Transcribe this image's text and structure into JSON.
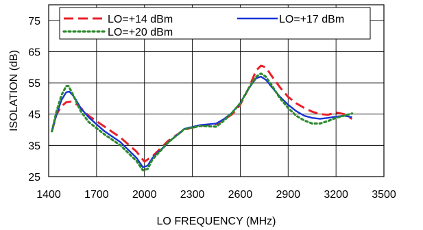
{
  "chart_data": {
    "type": "line",
    "title": "",
    "xlabel": "LO FREQUENCY (MHz)",
    "ylabel": "ISOLATION (dB)",
    "xlim": [
      1400,
      3500
    ],
    "ylim": [
      25,
      80
    ],
    "xticks": [
      1400,
      1700,
      2000,
      2300,
      2600,
      2900,
      3200,
      3500
    ],
    "yticks": [
      25,
      35,
      45,
      55,
      65,
      75
    ],
    "grid": true,
    "legend_position": "top",
    "series": [
      {
        "name": "LO=+14 dBm",
        "color": "#e8202a",
        "dash": "dashed",
        "x": [
          1420,
          1450,
          1480,
          1510,
          1540,
          1580,
          1650,
          1750,
          1850,
          1950,
          2000,
          2050,
          2150,
          2250,
          2350,
          2450,
          2500,
          2550,
          2600,
          2650,
          2700,
          2730,
          2760,
          2800,
          2850,
          2900,
          2950,
          3000,
          3050,
          3100,
          3150,
          3200,
          3250,
          3300
        ],
        "y": [
          39.5,
          45,
          47.5,
          48.8,
          49,
          48,
          44.5,
          41,
          37.5,
          33,
          29.8,
          31.5,
          36.5,
          40,
          41.3,
          41.8,
          43.3,
          45,
          48,
          53,
          59,
          60.5,
          60,
          57,
          53.5,
          50.5,
          48.5,
          47,
          45.8,
          45,
          44.8,
          45.5,
          45,
          43.5
        ]
      },
      {
        "name": "LO=+17 dBm",
        "color": "#1733d6",
        "dash": "solid",
        "x": [
          1420,
          1450,
          1480,
          1510,
          1530,
          1560,
          1600,
          1650,
          1750,
          1850,
          1950,
          1990,
          2020,
          2050,
          2150,
          2250,
          2350,
          2450,
          2500,
          2550,
          2600,
          2650,
          2700,
          2730,
          2760,
          2800,
          2850,
          2900,
          2950,
          3000,
          3050,
          3100,
          3150,
          3200,
          3250,
          3300
        ],
        "y": [
          39.5,
          45,
          49.5,
          52,
          52.2,
          50.5,
          47,
          44,
          39.5,
          36,
          31,
          28,
          28.5,
          31,
          36,
          40.3,
          41.5,
          42,
          43.5,
          45.5,
          48.5,
          53,
          56.5,
          57,
          56,
          53.5,
          50.5,
          48,
          46,
          44.5,
          43.8,
          43.5,
          43.8,
          44.2,
          44.5,
          44
        ]
      },
      {
        "name": "LO=+20 dBm",
        "color": "#2e8b2e",
        "dash": "dotted",
        "x": [
          1420,
          1450,
          1480,
          1510,
          1525,
          1550,
          1600,
          1650,
          1750,
          1850,
          1950,
          1990,
          2020,
          2050,
          2150,
          2250,
          2350,
          2450,
          2500,
          2550,
          2600,
          2650,
          2700,
          2730,
          2760,
          2800,
          2850,
          2900,
          2950,
          3000,
          3050,
          3100,
          3150,
          3200,
          3250,
          3300
        ],
        "y": [
          39.5,
          46,
          51,
          54,
          54,
          51.5,
          46,
          42.5,
          38.5,
          35,
          30,
          27,
          27.5,
          30.5,
          36,
          40.2,
          41.2,
          41,
          43,
          45.5,
          48.5,
          53,
          57,
          58,
          57,
          54,
          50,
          47,
          44.5,
          43,
          42,
          42,
          42.8,
          43.8,
          44.5,
          45.2
        ]
      }
    ]
  }
}
